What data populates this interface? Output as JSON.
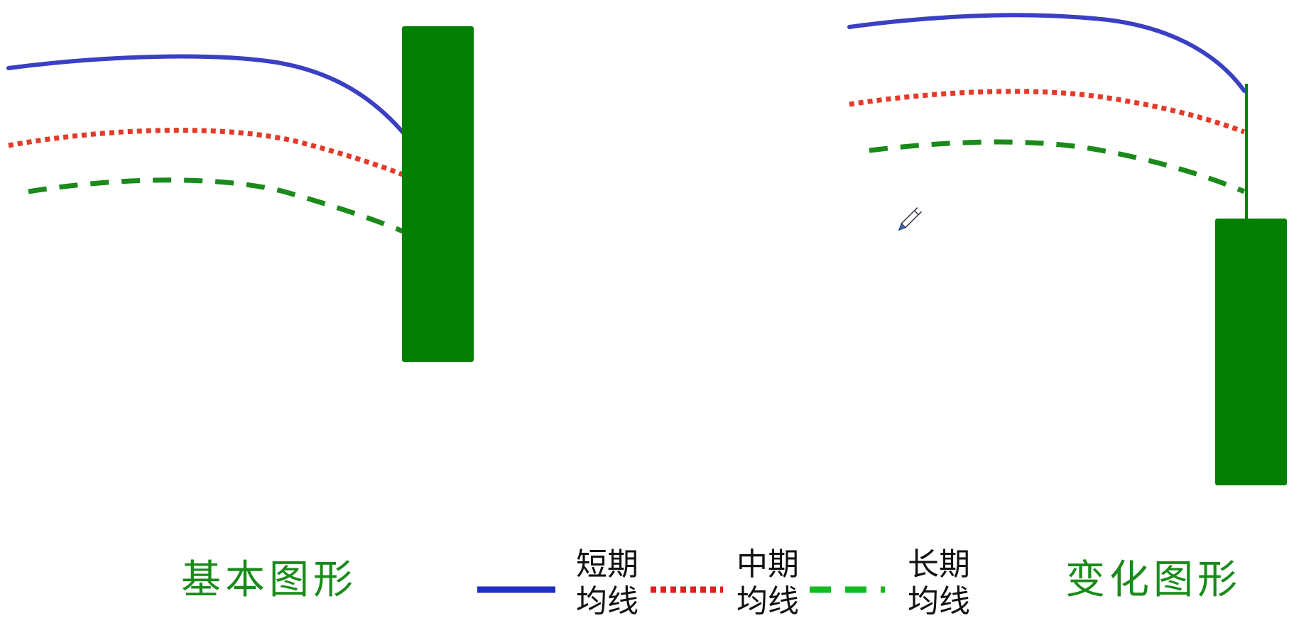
{
  "captions": {
    "basic": "基本图形",
    "variant": "变化图形"
  },
  "legend": {
    "short": {
      "line1": "短期",
      "line2": "均线",
      "color": "#1f2fbf",
      "style": "solid"
    },
    "mid": {
      "line1": "中期",
      "line2": "均线",
      "color": "#e02020",
      "style": "dotted"
    },
    "long": {
      "line1": "长期",
      "line2": "均线",
      "color": "#11bb22",
      "style": "dashed"
    }
  },
  "colors": {
    "candle": "#007f00",
    "short_ma": "#3a3fc4",
    "mid_ma": "#e43a2a",
    "long_ma": "#1a8a1a",
    "caption": "#1a8a1a"
  },
  "icons": {
    "cursor": "pen-cursor-icon"
  }
}
